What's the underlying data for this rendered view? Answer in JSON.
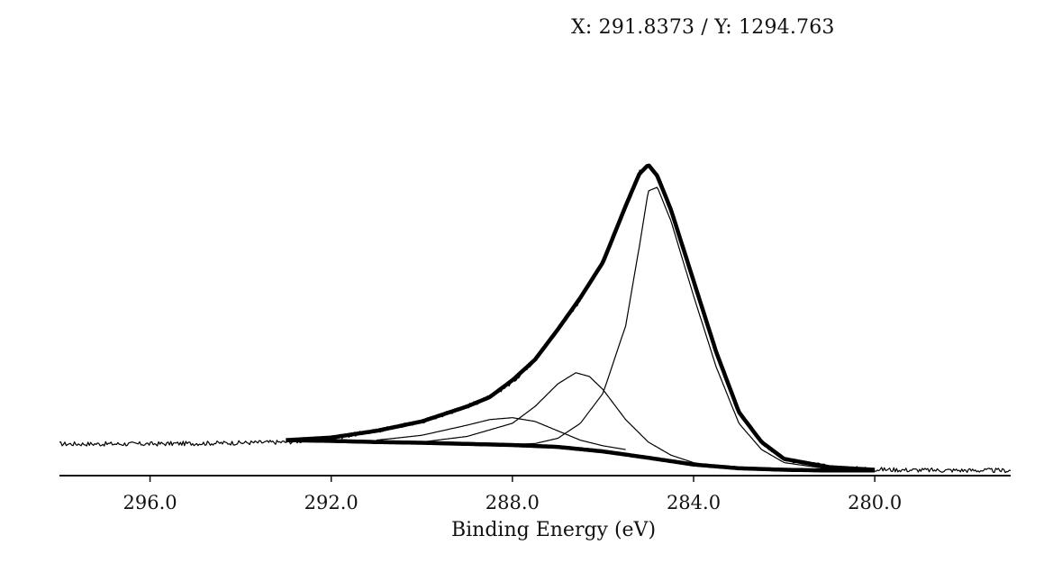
{
  "cursor_readout": "X: 291.8373 / Y: 1294.763",
  "chart_data": {
    "type": "line",
    "title": "",
    "xlabel": "Binding Energy (eV)",
    "ylabel": "",
    "x_reversed": true,
    "xlim": [
      298.0,
      277.0
    ],
    "ylim": [
      0,
      100
    ],
    "grid": false,
    "x_ticks": [
      {
        "value": 296.0,
        "label": "296.0"
      },
      {
        "value": 292.0,
        "label": "292.0"
      },
      {
        "value": 288.0,
        "label": "288.0"
      },
      {
        "value": 284.0,
        "label": "284.0"
      },
      {
        "value": 280.0,
        "label": "280.0"
      }
    ],
    "series": [
      {
        "role": "raw-data",
        "style": "thin-noisy",
        "x": [
          298.0,
          296.0,
          294.0,
          293.0,
          292.0,
          291.0,
          290.0,
          289.0,
          288.5,
          288.0,
          287.5,
          287.0,
          286.5,
          286.0,
          285.5,
          285.2,
          285.0,
          284.8,
          284.5,
          284.0,
          283.5,
          283.0,
          282.5,
          282.0,
          281.0,
          280.0,
          279.0,
          277.0
        ],
        "values": [
          7.5,
          7.5,
          7.8,
          8.0,
          9.0,
          11.0,
          13.5,
          17.5,
          20.0,
          24.0,
          30.0,
          38.0,
          46.0,
          56.0,
          71.0,
          80.0,
          82.0,
          79.0,
          70.0,
          51.0,
          32.0,
          16.0,
          8.0,
          3.5,
          1.3,
          0.7,
          0.5,
          0.4
        ]
      },
      {
        "role": "envelope",
        "style": "thick",
        "x": [
          293.0,
          292.0,
          291.0,
          290.0,
          289.0,
          288.5,
          288.0,
          287.5,
          287.0,
          286.5,
          286.0,
          285.5,
          285.2,
          285.0,
          284.8,
          284.5,
          284.0,
          283.5,
          283.0,
          282.5,
          282.0,
          281.0,
          280.0
        ],
        "values": [
          8.5,
          9.2,
          11.0,
          13.5,
          17.5,
          20.0,
          24.5,
          30.0,
          38.0,
          46.5,
          56.0,
          71.0,
          79.5,
          82.0,
          79.0,
          70.0,
          51.0,
          32.0,
          16.0,
          8.0,
          3.5,
          1.3,
          0.6
        ]
      },
      {
        "role": "background",
        "style": "thick",
        "x": [
          293.0,
          292.0,
          291.0,
          290.0,
          289.0,
          288.0,
          287.0,
          286.0,
          285.0,
          284.0,
          283.0,
          282.0,
          281.0,
          280.0
        ],
        "values": [
          8.5,
          8.3,
          8.0,
          7.8,
          7.5,
          7.2,
          6.7,
          5.5,
          3.8,
          2.0,
          1.0,
          0.6,
          0.4,
          0.4
        ]
      },
      {
        "role": "component-C-C",
        "style": "thin",
        "x": [
          290.0,
          289.0,
          288.0,
          287.5,
          287.0,
          286.5,
          286.0,
          285.5,
          285.2,
          285.0,
          284.8,
          284.5,
          284.0,
          283.5,
          283.0,
          282.5,
          282.0,
          281.0
        ],
        "values": [
          7.8,
          7.6,
          7.4,
          7.6,
          9.0,
          13.0,
          21.0,
          39.0,
          60.0,
          75.0,
          76.0,
          67.0,
          47.0,
          28.0,
          13.0,
          6.0,
          2.5,
          0.8
        ]
      },
      {
        "role": "component-C-O",
        "style": "thin",
        "x": [
          290.0,
          289.0,
          288.0,
          287.5,
          287.0,
          286.6,
          286.3,
          286.0,
          285.5,
          285.0,
          284.5,
          284.0,
          283.5
        ],
        "values": [
          8.0,
          9.5,
          13.0,
          17.5,
          23.5,
          26.5,
          25.5,
          22.0,
          14.0,
          8.0,
          4.5,
          2.5,
          1.5
        ]
      },
      {
        "role": "component-C=O",
        "style": "thin",
        "x": [
          291.0,
          290.0,
          289.0,
          288.5,
          288.0,
          287.5,
          287.0,
          286.5,
          286.0,
          285.5
        ],
        "values": [
          8.5,
          9.8,
          12.5,
          14.0,
          14.5,
          13.5,
          11.0,
          8.5,
          7.0,
          6.0
        ]
      }
    ]
  }
}
